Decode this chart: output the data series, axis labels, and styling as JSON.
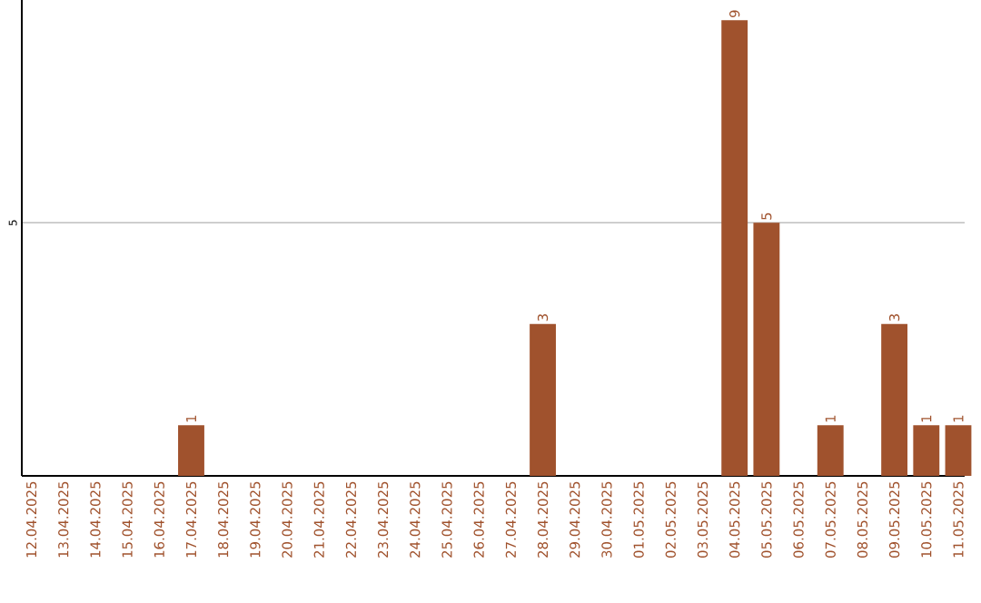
{
  "chart_data": {
    "type": "bar",
    "categories": [
      "12.04.2025",
      "13.04.2025",
      "14.04.2025",
      "15.04.2025",
      "16.04.2025",
      "17.04.2025",
      "18.04.2025",
      "19.04.2025",
      "20.04.2025",
      "21.04.2025",
      "22.04.2025",
      "23.04.2025",
      "24.04.2025",
      "25.04.2025",
      "26.04.2025",
      "27.04.2025",
      "28.04.2025",
      "29.04.2025",
      "30.04.2025",
      "01.05.2025",
      "02.05.2025",
      "03.05.2025",
      "04.05.2025",
      "05.05.2025",
      "06.05.2025",
      "07.05.2025",
      "08.05.2025",
      "09.05.2025",
      "10.05.2025",
      "11.05.2025"
    ],
    "values": [
      0,
      0,
      0,
      0,
      0,
      1,
      0,
      0,
      0,
      0,
      0,
      0,
      0,
      0,
      0,
      0,
      3,
      0,
      0,
      0,
      0,
      0,
      9,
      5,
      0,
      1,
      0,
      3,
      1,
      1
    ],
    "value_labels": [
      null,
      null,
      null,
      null,
      null,
      "1",
      null,
      null,
      null,
      null,
      null,
      null,
      null,
      null,
      null,
      null,
      "3",
      null,
      null,
      null,
      null,
      null,
      "9",
      "5",
      null,
      "1",
      null,
      "3",
      "1",
      "1"
    ],
    "color": "#a0522d",
    "ylim": [
      0,
      9.4
    ],
    "yticks": [
      5
    ],
    "grid": "y"
  }
}
